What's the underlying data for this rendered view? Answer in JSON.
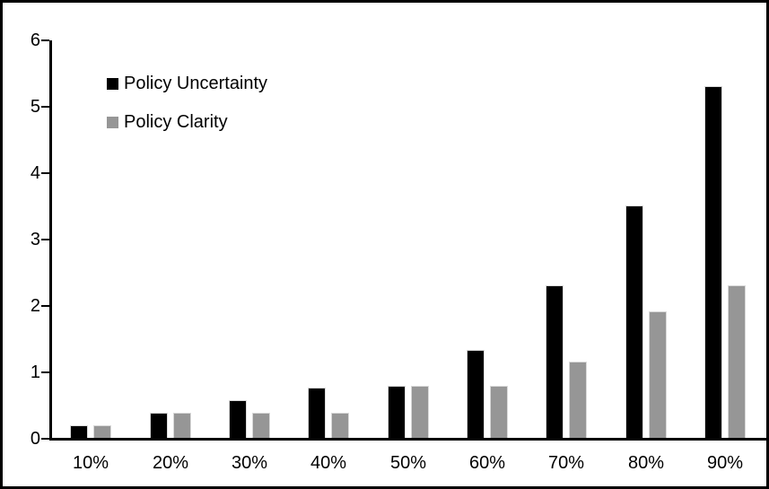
{
  "chart_data": {
    "type": "bar",
    "categories": [
      "10%",
      "20%",
      "30%",
      "40%",
      "50%",
      "60%",
      "70%",
      "80%",
      "90%"
    ],
    "series": [
      {
        "name": "Policy Uncertainty",
        "color": "#000000",
        "values": [
          0.19,
          0.38,
          0.57,
          0.76,
          0.78,
          1.33,
          2.3,
          3.5,
          5.3
        ]
      },
      {
        "name": "Policy Clarity",
        "color": "#969696",
        "values": [
          0.19,
          0.38,
          0.38,
          0.38,
          0.78,
          0.78,
          1.15,
          1.9,
          2.3
        ]
      }
    ],
    "title": "",
    "xlabel": "",
    "ylabel": "",
    "ylim": [
      0,
      6
    ],
    "yticks": [
      0,
      1,
      2,
      3,
      4,
      5,
      6
    ],
    "grid": false,
    "legend_position": "inside-top-left",
    "bar_outline_color": "#d9d9d9",
    "axis_color": "#000000",
    "frame_color": "#000000",
    "background_color": "#ffffff"
  }
}
